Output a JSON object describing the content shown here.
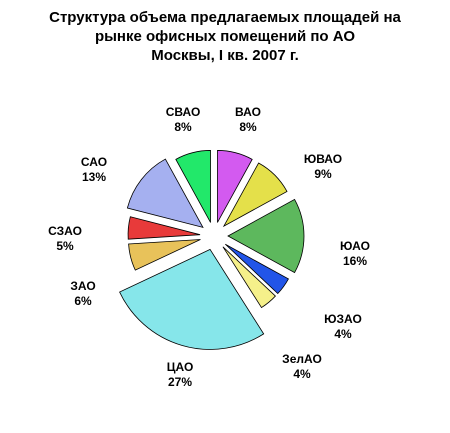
{
  "chart_data": {
    "type": "pie",
    "title": [
      "Структура объема предлагаемых площадей на",
      "рынке офисных помещений по АО",
      "Москвы, I кв. 2007 г."
    ],
    "slices": [
      {
        "name": "ВАО",
        "percent": "8%",
        "value": 8,
        "color": "#d35af0"
      },
      {
        "name": "ЮВАО",
        "percent": "9%",
        "value": 9,
        "color": "#e4e04a"
      },
      {
        "name": "ЮАО",
        "percent": "16%",
        "value": 16,
        "color": "#5db85d"
      },
      {
        "name": "ЮЗАО",
        "percent": "4%",
        "value": 4,
        "color": "#2255e8"
      },
      {
        "name": "ЗелАО",
        "percent": "4%",
        "value": 4,
        "color": "#f5f08a"
      },
      {
        "name": "ЦАО",
        "percent": "27%",
        "value": 27,
        "color": "#86e6ea"
      },
      {
        "name": "ЗАО",
        "percent": "6%",
        "value": 6,
        "color": "#e8c25a"
      },
      {
        "name": "СЗАО",
        "percent": "5%",
        "value": 5,
        "color": "#e83a3a"
      },
      {
        "name": "САО",
        "percent": "13%",
        "value": 13,
        "color": "#a5b0f0"
      },
      {
        "name": "СВАО",
        "percent": "8%",
        "value": 8,
        "color": "#22e86a"
      }
    ]
  }
}
